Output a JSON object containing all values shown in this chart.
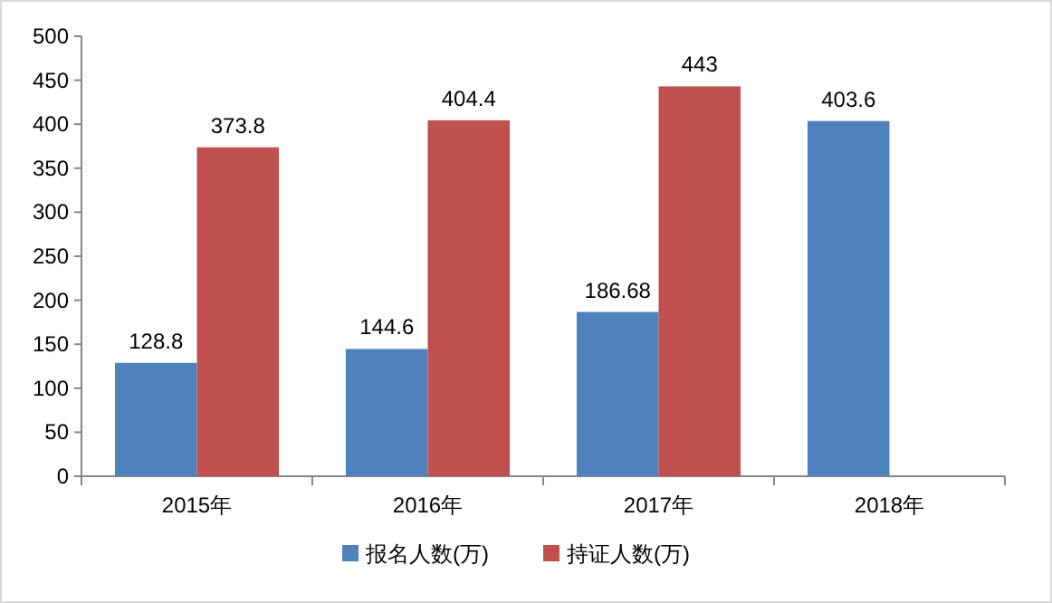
{
  "chart_data": {
    "type": "bar",
    "categories": [
      "2015年",
      "2016年",
      "2017年",
      "2018年"
    ],
    "series": [
      {
        "name": "报名人数(万)",
        "color": "#4f81bd",
        "values": [
          128.8,
          144.6,
          186.68,
          403.6
        ]
      },
      {
        "name": "持证人数(万)",
        "color": "#c0504d",
        "values": [
          373.8,
          404.4,
          443,
          null
        ]
      }
    ],
    "ylim": [
      0,
      500
    ],
    "yticks": [
      0,
      50,
      100,
      150,
      200,
      250,
      300,
      350,
      400,
      450,
      500
    ],
    "grid": false,
    "legend": "bottom",
    "data_labels": true
  }
}
